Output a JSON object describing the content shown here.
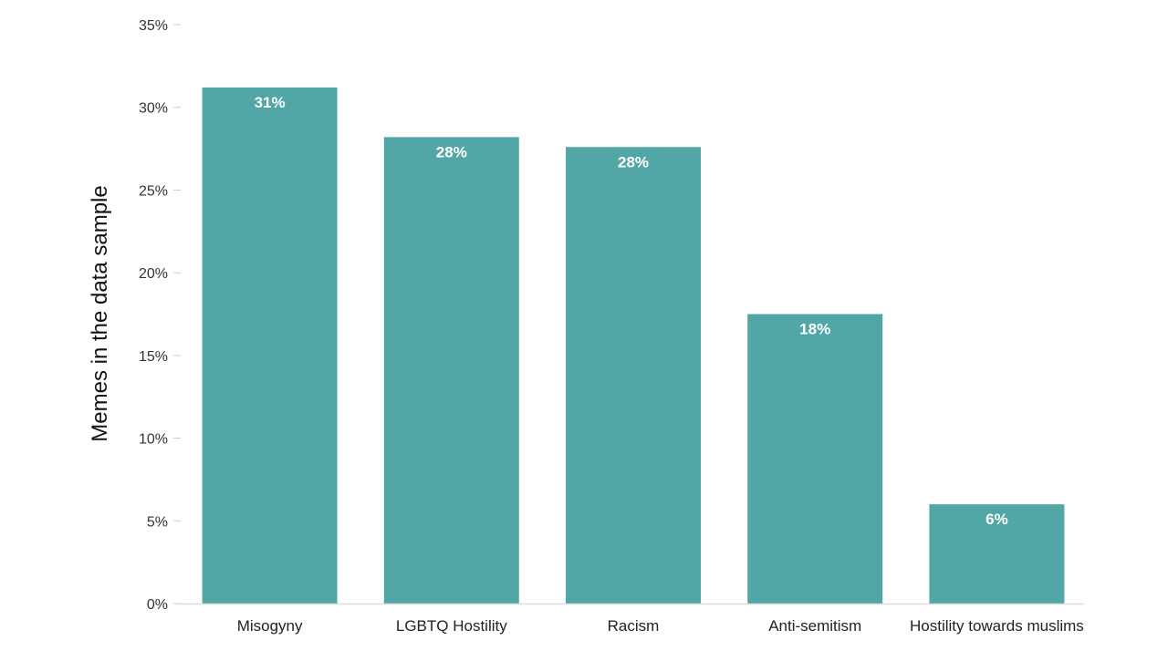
{
  "chart_data": {
    "type": "bar",
    "title": "",
    "xlabel": "",
    "ylabel": "Memes in the data sample",
    "categories": [
      "Misogyny",
      "LGBTQ Hostility",
      "Racism",
      "Anti-semitism",
      "Hostility towards muslims"
    ],
    "values": [
      31.2,
      28.2,
      27.6,
      17.5,
      6.0
    ],
    "data_labels": [
      "31%",
      "28%",
      "28%",
      "18%",
      "6%"
    ],
    "ylim": [
      0,
      35
    ],
    "yticks": [
      0,
      5,
      10,
      15,
      20,
      25,
      30,
      35
    ],
    "ytick_labels": [
      "0%",
      "5%",
      "10%",
      "15%",
      "20%",
      "25%",
      "30%",
      "35%"
    ],
    "bar_color": "#52a6a6",
    "grid": false,
    "legend": "none"
  }
}
